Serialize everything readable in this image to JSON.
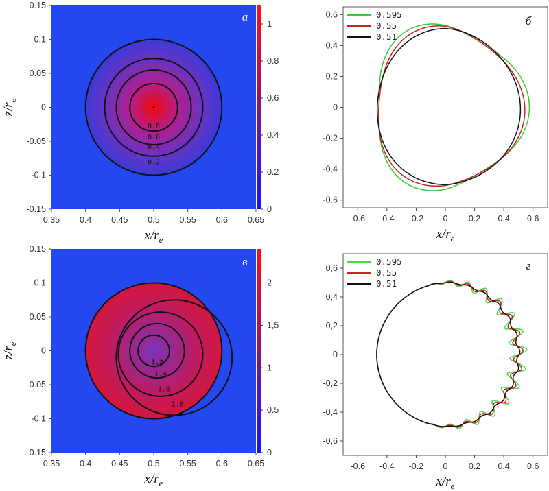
{
  "chart_data": [
    {
      "id": "a",
      "type": "heatmap",
      "panel_label": "а",
      "xlabel": "x/r",
      "ylabel": "z/r",
      "label_subscript": "e",
      "xlim": [
        0.35,
        0.65
      ],
      "ylim": [
        -0.15,
        0.15
      ],
      "x_ticks": [
        "0.35",
        "0.4",
        "0.45",
        "0.5",
        "0.55",
        "0.6",
        "0.65"
      ],
      "y_ticks": [
        "-0.15",
        "-0.1",
        "-0.05",
        "0",
        "0.05",
        "0.1",
        "0.15"
      ],
      "colorbar": {
        "min": 0,
        "max": 1.1,
        "ticks": [
          "0",
          "0.2",
          "0.4",
          "0.6",
          "0.8",
          "1"
        ]
      },
      "colors": {
        "background": "#2448f0",
        "low": "#3b3ad8",
        "high": "#f00a0a"
      },
      "disk": {
        "center": [
          0.5,
          0.0
        ],
        "radius": 0.1
      },
      "contours": [
        {
          "level": "0.8",
          "radius": 0.035
        },
        {
          "level": "0.6",
          "radius": 0.055
        },
        {
          "level": "0.4",
          "radius": 0.072
        },
        {
          "level": "0.2",
          "radius": 0.1
        }
      ]
    },
    {
      "id": "b",
      "type": "line",
      "panel_label": "б",
      "xlabel": "x/r",
      "ylabel": "",
      "label_subscript": "e",
      "xlim": [
        -0.7,
        0.7
      ],
      "ylim": [
        -0.65,
        0.65
      ],
      "x_ticks": [
        "-0.6",
        "-0.4",
        "-0.2",
        "0",
        "0.2",
        "0.4",
        "0.6"
      ],
      "y_ticks": [
        "-0.6",
        "-0.4",
        "-0.2",
        "0",
        "0.2",
        "0.4",
        "0.6"
      ],
      "series": [
        {
          "name": "0.595",
          "color": "#33cc33",
          "R0": 0.53,
          "A": 0.045,
          "k": 3,
          "phi": 0
        },
        {
          "name": "0.55",
          "color": "#cc2222",
          "R0": 0.515,
          "A": 0.03,
          "k": 3,
          "phi": 0.3
        },
        {
          "name": "0.51",
          "color": "#111111",
          "R0": 0.505,
          "A": 0.01,
          "k": 3,
          "phi": 0.5
        }
      ]
    },
    {
      "id": "c",
      "type": "heatmap",
      "panel_label": "в",
      "xlabel": "x/r",
      "ylabel": "z/r",
      "label_subscript": "e",
      "xlim": [
        0.35,
        0.65
      ],
      "ylim": [
        -0.15,
        0.15
      ],
      "x_ticks": [
        "0.35",
        "0.4",
        "0.45",
        "0.5",
        "0.55",
        "0.6",
        "0.65"
      ],
      "y_ticks": [
        "-0.15",
        "-0.1",
        "-0.05",
        "0",
        "0.05",
        "0.1",
        "0.15"
      ],
      "colorbar": {
        "min": 0,
        "max": 2.4,
        "ticks": [
          "0",
          "0.5",
          "1",
          "1,5",
          "2"
        ]
      },
      "colors": {
        "background": "#2448f0",
        "low": "#7a33b8",
        "high": "#ee1111"
      },
      "disk": {
        "center": [
          0.5,
          0.0
        ],
        "radius": 0.1
      },
      "contours": [
        {
          "level": "1.2",
          "center": [
            0.5,
            0.0
          ],
          "radius": 0.023
        },
        {
          "level": "1.4",
          "center": [
            0.505,
            0.0
          ],
          "radius": 0.04
        },
        {
          "level": "1.6",
          "center": [
            0.51,
            -0.005
          ],
          "radius": 0.062
        },
        {
          "level": "1.8",
          "center": [
            0.53,
            -0.01
          ],
          "radius": 0.085
        }
      ]
    },
    {
      "id": "d",
      "type": "line",
      "panel_label": "г",
      "xlabel": "x/r",
      "ylabel": "",
      "label_subscript": "e",
      "xlim": [
        -0.7,
        0.7
      ],
      "ylim": [
        -0.7,
        0.7
      ],
      "x_ticks": [
        "-0.6",
        "-0.4",
        "-0.2",
        "0",
        "0.2",
        "0.4",
        "0.6"
      ],
      "y_ticks": [
        "-0,6",
        "-0,4",
        "-0,2",
        "0",
        "0,2",
        "0,4",
        "0,6"
      ],
      "series": [
        {
          "name": "0.595",
          "color": "#44dd44",
          "R0": 0.5,
          "A": 0.045,
          "k": 26,
          "phi": 0
        },
        {
          "name": "0.55",
          "color": "#cc2222",
          "R0": 0.5,
          "A": 0.025,
          "k": 26,
          "phi": 0.2
        },
        {
          "name": "0.51",
          "color": "#111111",
          "R0": 0.5,
          "A": 0.008,
          "k": 26,
          "phi": 0.4
        }
      ]
    }
  ]
}
